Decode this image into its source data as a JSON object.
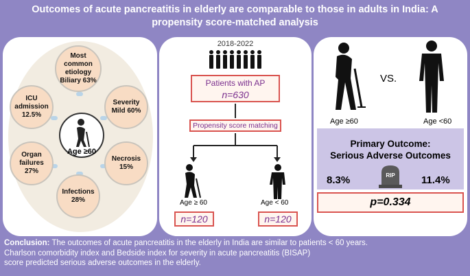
{
  "title": {
    "line1": "Outcomes of acute pancreatitis in elderly are comparable to those in adults in India: A",
    "line2": "propensity score-matched analysis"
  },
  "left_panel": {
    "center_label": "Age ≥60",
    "bubbles": [
      {
        "id": "etiology",
        "lines": [
          "Most",
          "common",
          "etiology",
          "Biliary 63%"
        ]
      },
      {
        "id": "severity",
        "lines": [
          "Severity",
          "Mild 60%"
        ]
      },
      {
        "id": "necrosis",
        "lines": [
          "Necrosis",
          "15%"
        ]
      },
      {
        "id": "infections",
        "lines": [
          "Infections",
          "28%"
        ]
      },
      {
        "id": "organ-failures",
        "lines": [
          "Organ",
          "failures",
          "27%"
        ]
      },
      {
        "id": "icu",
        "lines": [
          "ICU",
          "admission",
          "12.5%"
        ]
      }
    ]
  },
  "middle_panel": {
    "years": "2018-2022",
    "patients_label": "Patients with AP",
    "patients_n": "n=630",
    "matching_label": "Propensity score matching",
    "group_old_label": "Age ≥ 60",
    "group_young_label": "Age < 60",
    "group_old_n": "n=120",
    "group_young_n": "n=120"
  },
  "right_panel": {
    "vs": "VS.",
    "age_old": "Age ≥60",
    "age_young": "Age <60",
    "primary_title_1": "Primary Outcome:",
    "primary_title_2": "Serious Adverse Outcomes",
    "pct_old": "8.3%",
    "pct_young": "11.4%",
    "tombstone_text": "RIP",
    "p_value": "p=0.334"
  },
  "conclusion": {
    "label": "Conclusion:",
    "text1": " The outcomes of acute pancreatitis in the elderly in India are similar to patients < 60 years.",
    "text2": "Charlson comorbidity index and Bedside index for severity in acute pancreatitis (BISAP)",
    "text3": "score predicted serious adverse outcomes in the elderly."
  },
  "colors": {
    "frame": "#8f86c4",
    "bubble_fill": "#f8dcc4",
    "box_border": "#d9534f",
    "box_text": "#7a2f8e",
    "primary_box": "#ccc5e6"
  }
}
